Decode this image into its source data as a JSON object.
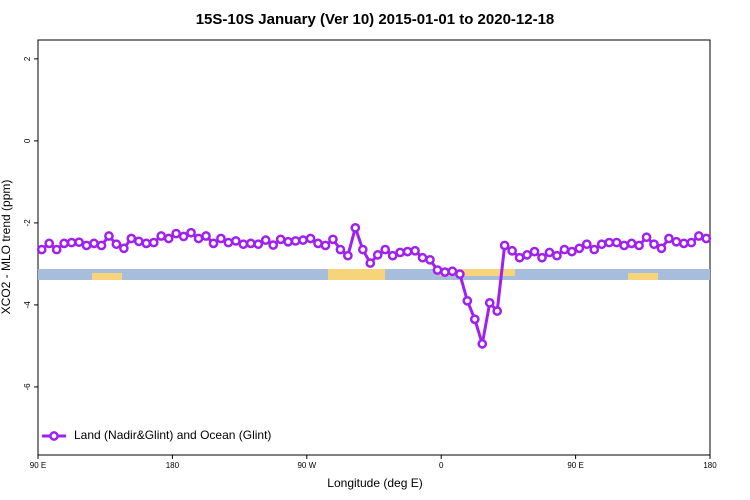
{
  "chart_data": {
    "type": "line",
    "title": "15S-10S January (Ver 10)   2015-01-01 to 2020-12-18",
    "x_label": "Longitude (deg E)",
    "y_label": "XCO2 - MLO trend (ppm)",
    "xlim": [
      90,
      540
    ],
    "ylim": [
      -7.66,
      2.46
    ],
    "xticks": [
      {
        "value": 90,
        "label": "90 E"
      },
      180,
      {
        "value": 270,
        "label": "90 W"
      },
      {
        "value": 360,
        "label": "0"
      },
      {
        "value": 450,
        "label": "90 E"
      },
      {
        "value": 540,
        "label": "180"
      }
    ],
    "yticks": [
      2,
      0,
      -2,
      -4,
      -6
    ],
    "legend": "bottom-left",
    "x": [
      92.5,
      97.5,
      102.5,
      107.5,
      112.5,
      117.5,
      122.5,
      127.5,
      132.5,
      137.5,
      142.5,
      147.5,
      152.5,
      157.5,
      162.5,
      167.5,
      172.5,
      177.5,
      182.5,
      187.5,
      192.5,
      197.5,
      202.5,
      207.5,
      212.5,
      217.5,
      222.5,
      227.5,
      232.5,
      237.5,
      242.5,
      247.5,
      252.5,
      257.5,
      262.5,
      267.5,
      272.5,
      277.5,
      282.5,
      287.5,
      292.5,
      297.5,
      302.5,
      307.5,
      312.5,
      317.5,
      322.5,
      327.5,
      332.5,
      337.5,
      342.5,
      347.5,
      352.5,
      357.5,
      362.5,
      367.5,
      372.5,
      377.5,
      382.5,
      387.5,
      392.5,
      397.5,
      402.5,
      407.5,
      412.5,
      417.5,
      422.5,
      427.5,
      432.5,
      437.5,
      442.5,
      447.5,
      452.5,
      457.5,
      462.5,
      467.5,
      472.5,
      477.5,
      482.5,
      487.5,
      492.5,
      497.5,
      502.5,
      507.5,
      512.5,
      517.5,
      522.5,
      527.5,
      532.5,
      537.5
    ],
    "series": [
      {
        "name": "Land (Nadir&Glint) and Ocean (Glint)",
        "color": "#a020f0",
        "values": [
          -2.65,
          -2.5,
          -2.65,
          -2.5,
          -2.48,
          -2.47,
          -2.55,
          -2.5,
          -2.55,
          -2.32,
          -2.52,
          -2.62,
          -2.38,
          -2.45,
          -2.5,
          -2.48,
          -2.32,
          -2.38,
          -2.26,
          -2.33,
          -2.24,
          -2.38,
          -2.32,
          -2.5,
          -2.38,
          -2.48,
          -2.44,
          -2.52,
          -2.5,
          -2.52,
          -2.42,
          -2.54,
          -2.4,
          -2.46,
          -2.44,
          -2.42,
          -2.38,
          -2.5,
          -2.55,
          -2.4,
          -2.65,
          -2.8,
          -2.12,
          -2.65,
          -2.98,
          -2.78,
          -2.65,
          -2.8,
          -2.72,
          -2.7,
          -2.68,
          -2.85,
          -2.9,
          -3.15,
          -3.2,
          -3.18,
          -3.25,
          -3.9,
          -4.35,
          -4.95,
          -3.95,
          -4.15,
          -2.55,
          -2.68,
          -2.85,
          -2.78,
          -2.7,
          -2.85,
          -2.72,
          -2.8,
          -2.65,
          -2.7,
          -2.62,
          -2.52,
          -2.65,
          -2.52,
          -2.48,
          -2.48,
          -2.55,
          -2.5,
          -2.55,
          -2.35,
          -2.52,
          -2.62,
          -2.38,
          -2.46,
          -2.5,
          -2.48,
          -2.32,
          -2.38
        ]
      }
    ]
  }
}
